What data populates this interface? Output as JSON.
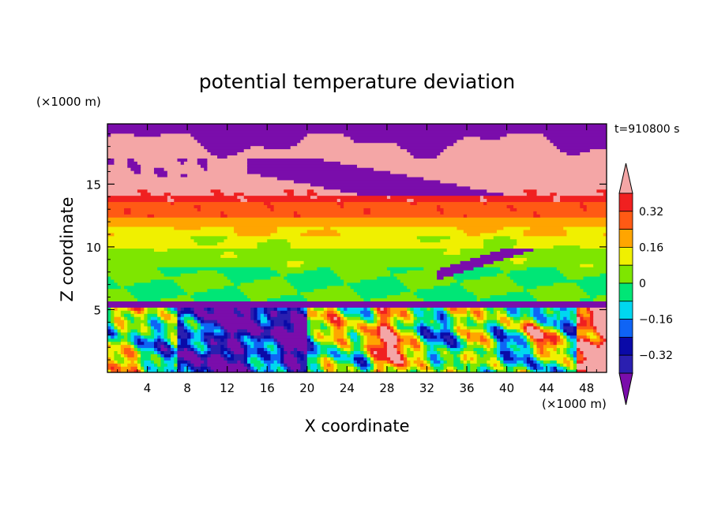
{
  "chart_data": {
    "type": "heatmap",
    "title": "potential temperature deviation",
    "xlabel": "X coordinate",
    "ylabel": "Z coordinate",
    "x_unit": "(×1000 m)",
    "y_unit": "(×1000 m)",
    "time_label": "t=910800 s",
    "xlim": [
      0,
      50
    ],
    "ylim": [
      0,
      19.8
    ],
    "x_ticks": [
      "4",
      "8",
      "12",
      "16",
      "20",
      "24",
      "28",
      "32",
      "36",
      "40",
      "44",
      "48"
    ],
    "y_ticks": [
      "5",
      "10",
      "15"
    ],
    "colorbar": {
      "levels": [
        -0.4,
        -0.32,
        -0.24,
        -0.16,
        -0.08,
        0,
        0.08,
        0.16,
        0.24,
        0.32,
        0.4
      ],
      "tick_labels": [
        "0.32",
        "0.16",
        "0",
        "−0.16",
        "−0.32"
      ],
      "colors": [
        "#7a0dab",
        "#2a1fb0",
        "#0a0aa8",
        "#0f64f5",
        "#00d7f0",
        "#00e676",
        "#7ee600",
        "#f0f000",
        "#ffa500",
        "#ff5a14",
        "#f02020",
        "#f4a6a6"
      ],
      "extend": "both"
    },
    "field_summary": {
      "z_bands": [
        {
          "z_from": 17.2,
          "z_to": 19.8,
          "dominant_value": "below -0.4 and above 0.4 (patchy)"
        },
        {
          "z_from": 14.0,
          "z_to": 17.2,
          "dominant_value": "above 0.4 with below -0.4 intrusions"
        },
        {
          "z_from": 12.3,
          "z_to": 14.0,
          "dominant_value": "0.24 to 0.32"
        },
        {
          "z_from": 10.0,
          "z_to": 12.3,
          "dominant_value": "0.08 to 0.24"
        },
        {
          "z_from": 5.6,
          "z_to": 10.0,
          "dominant_value": "-0.08 to 0.08"
        },
        {
          "z_from": 5.2,
          "z_to": 5.6,
          "dominant_value": "below -0.4 (thin layer)"
        },
        {
          "z_from": 0,
          "z_to": 5.2,
          "dominant_value": "mixed -0.4 to 0.4 turbulent"
        }
      ]
    }
  }
}
